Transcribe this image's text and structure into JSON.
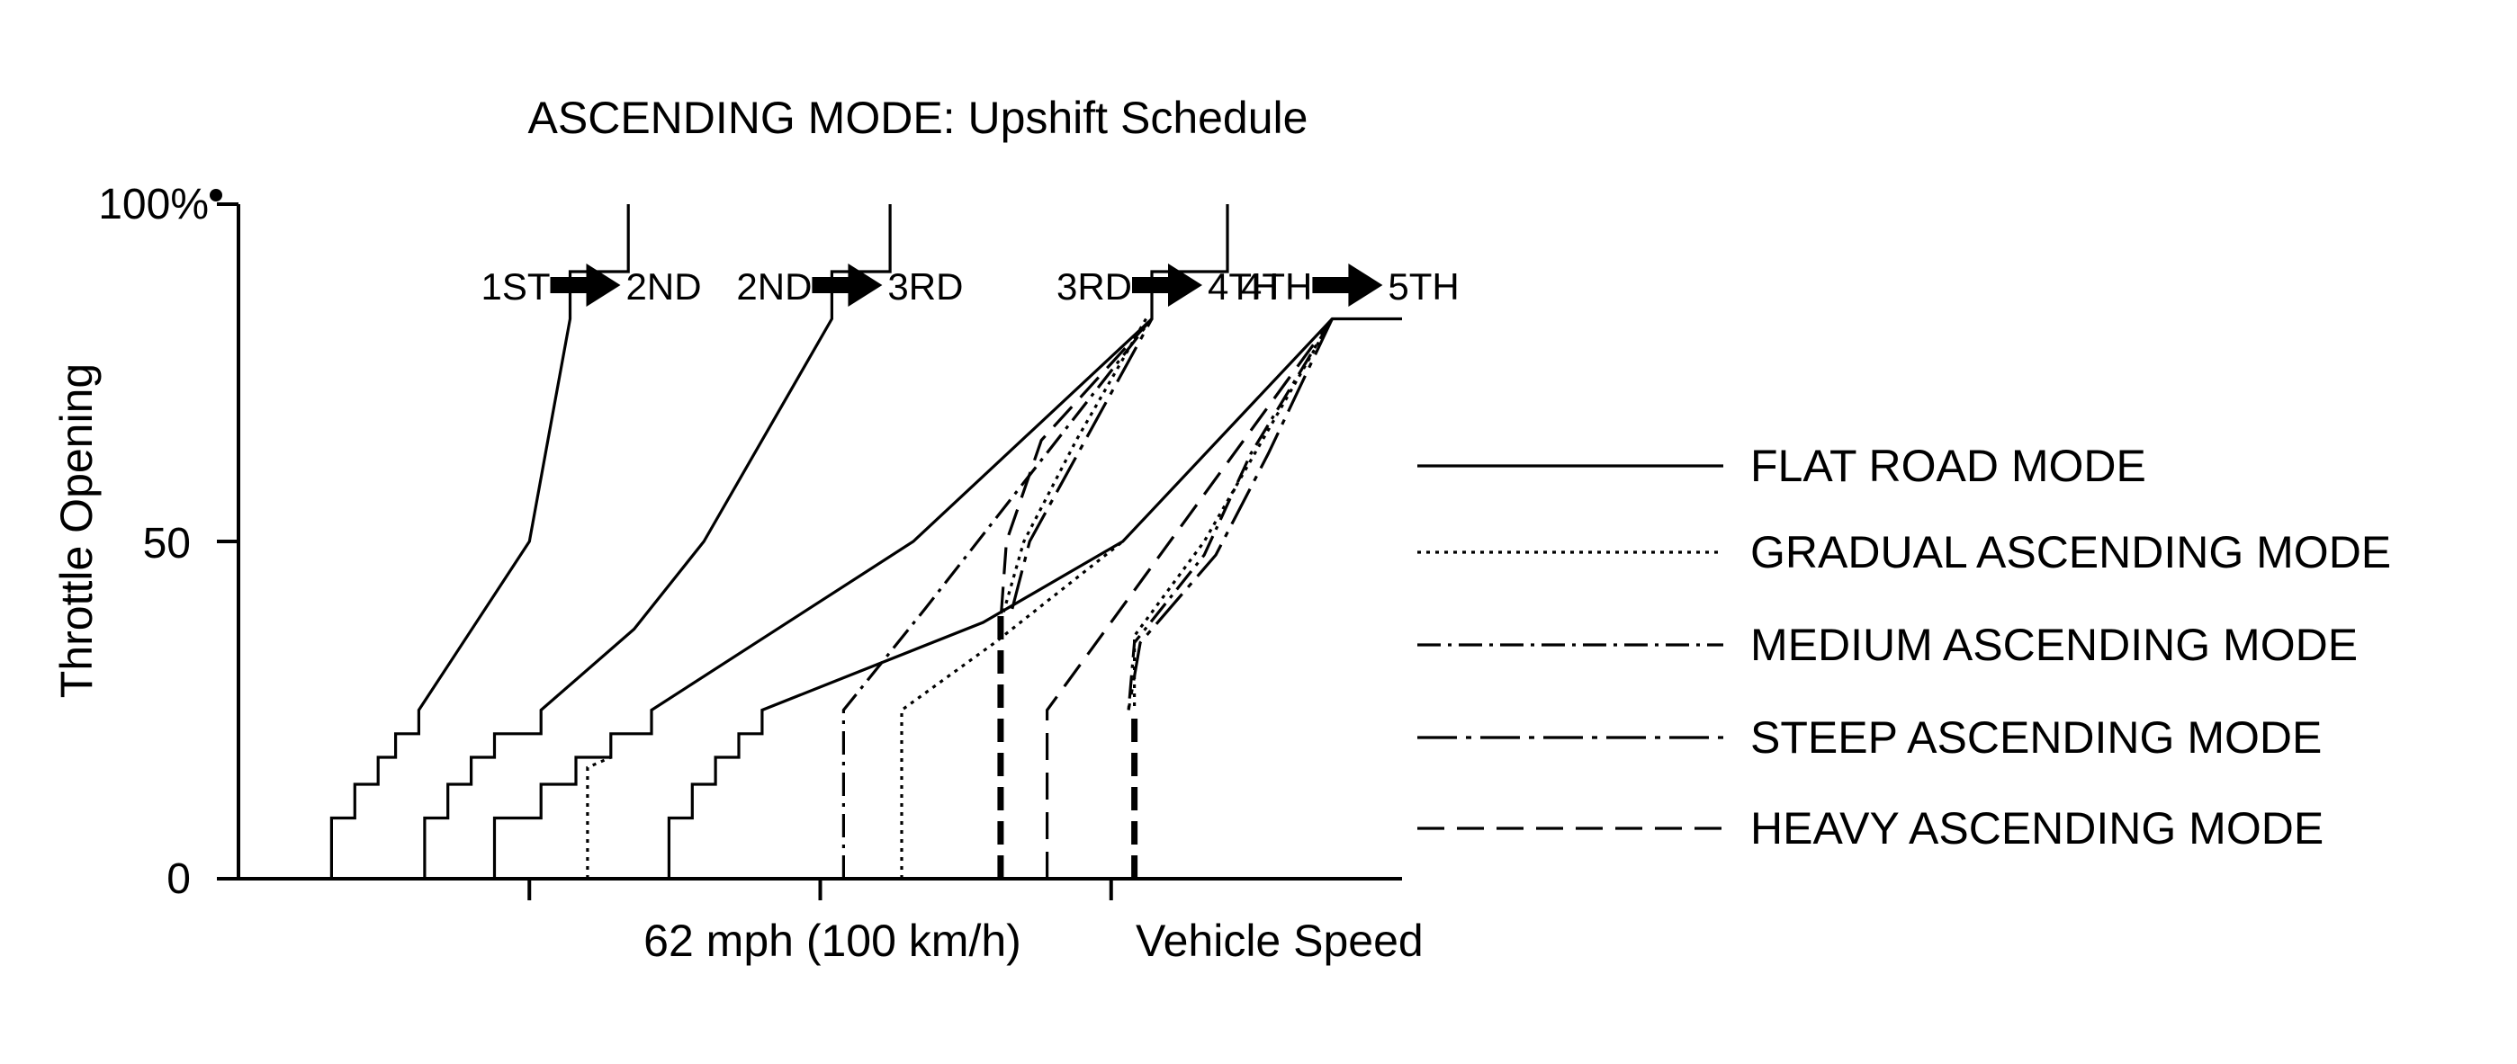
{
  "chart_data": {
    "type": "line",
    "title": "ASCENDING MODE: Upshift Schedule",
    "ylabel": "Throttle Opening",
    "xlabel": "Vehicle Speed",
    "x_reference_label": "62 mph (100 km/h)",
    "y_ticks": [
      "100%",
      "50",
      "0"
    ],
    "xlim": [
      0,
      100
    ],
    "ylim": [
      0,
      100
    ],
    "grid": false,
    "legend_position": "right",
    "shift_labels": [
      {
        "from": "1ST",
        "to": "2ND"
      },
      {
        "from": "2ND",
        "to": "3RD"
      },
      {
        "from": "3RD",
        "to": "4TH"
      },
      {
        "from": "4TH",
        "to": "5TH"
      }
    ],
    "series": [
      {
        "name": "FLAT ROAD MODE",
        "style": "solid",
        "lines": [
          {
            "points": [
              [
                8,
                0
              ],
              [
                8,
                9
              ],
              [
                10,
                9
              ],
              [
                10,
                14
              ],
              [
                12,
                14
              ],
              [
                12,
                18
              ],
              [
                13.5,
                18
              ],
              [
                13.5,
                21.5
              ],
              [
                15.5,
                21.5
              ],
              [
                15.5,
                25
              ],
              [
                25,
                50
              ],
              [
                28.5,
                83
              ],
              [
                28.5,
                90
              ],
              [
                33.5,
                90
              ],
              [
                33.5,
                100
              ]
            ]
          },
          {
            "points": [
              [
                16,
                0
              ],
              [
                16,
                9
              ],
              [
                18,
                9
              ],
              [
                18,
                14
              ],
              [
                20,
                14
              ],
              [
                20,
                18
              ],
              [
                22,
                18
              ],
              [
                22,
                21.5
              ],
              [
                26,
                21.5
              ],
              [
                26,
                25
              ],
              [
                34,
                37
              ],
              [
                40,
                50
              ],
              [
                51,
                83
              ],
              [
                51,
                90
              ],
              [
                56,
                90
              ],
              [
                56,
                100
              ]
            ]
          },
          {
            "points": [
              [
                22,
                0
              ],
              [
                22,
                9
              ],
              [
                26,
                9
              ],
              [
                26,
                14
              ],
              [
                29,
                14
              ],
              [
                29,
                18
              ],
              [
                32,
                18
              ],
              [
                32,
                21.5
              ],
              [
                35.5,
                21.5
              ],
              [
                35.5,
                25
              ],
              [
                58,
                50
              ],
              [
                78.5,
                83
              ],
              [
                78.5,
                90
              ],
              [
                85,
                90
              ],
              [
                85,
                100
              ]
            ]
          },
          {
            "points": [
              [
                37,
                0
              ],
              [
                37,
                9
              ],
              [
                39,
                9
              ],
              [
                39,
                14
              ],
              [
                41,
                14
              ],
              [
                41,
                18
              ],
              [
                43,
                18
              ],
              [
                43,
                21.5
              ],
              [
                45,
                21.5
              ],
              [
                45,
                25
              ],
              [
                64,
                38
              ],
              [
                76,
                50
              ],
              [
                94,
                83
              ],
              [
                100,
                83
              ]
            ]
          }
        ]
      },
      {
        "name": "GRADUAL ASCENDING MODE",
        "style": "dotted",
        "lines": [
          {
            "points": [
              [
                30,
                0
              ],
              [
                30,
                16.5
              ],
              [
                32,
                18
              ]
            ]
          },
          {
            "points": [
              [
                57,
                0
              ],
              [
                57,
                25
              ],
              [
                65,
                35
              ],
              [
                76,
                50
              ]
            ]
          },
          {
            "points": [
              [
                78,
                83
              ],
              [
                72,
                65
              ],
              [
                67.5,
                50
              ],
              [
                65.5,
                38
              ]
            ]
          },
          {
            "points": [
              [
                94,
                83
              ],
              [
                88,
                65
              ],
              [
                83,
                50
              ],
              [
                77,
                36
              ],
              [
                77,
                25
              ]
            ]
          }
        ]
      },
      {
        "name": "MEDIUM ASCENDING MODE",
        "style": "dash-dot",
        "lines": [
          {
            "points": [
              [
                52,
                0
              ],
              [
                52,
                25
              ],
              [
                59,
                40
              ],
              [
                78.5,
                83
              ]
            ]
          },
          {
            "points": [
              [
                94,
                83
              ],
              [
                87,
                63
              ],
              [
                83,
                48
              ],
              [
                77,
                35
              ],
              [
                76.5,
                25
              ]
            ]
          }
        ]
      },
      {
        "name": "STEEP ASCENDING MODE",
        "style": "long-dash-dot",
        "lines": [
          {
            "points": [
              [
                66.5,
                40
              ],
              [
                68,
                50
              ],
              [
                78.5,
                83
              ]
            ]
          },
          {
            "points": [
              [
                94,
                83
              ],
              [
                88.5,
                63
              ],
              [
                84,
                48
              ],
              [
                77.5,
                35
              ],
              [
                76.5,
                25
              ]
            ]
          }
        ]
      },
      {
        "name": "HEAVY ASCENDING MODE",
        "style": "dashed",
        "lines": [
          {
            "points": [
              [
                69.5,
                0
              ],
              [
                69.5,
                25
              ],
              [
                94,
                83
              ]
            ]
          },
          {
            "points": [
              [
                78.5,
                83
              ],
              [
                69,
                65
              ],
              [
                66,
                50
              ],
              [
                65.5,
                38
              ]
            ]
          }
        ],
        "bold_verticals": [
          {
            "x": 65.5,
            "y0": 0,
            "y1": 40
          },
          {
            "x": 77,
            "y0": 0,
            "y1": 25
          }
        ]
      }
    ]
  }
}
